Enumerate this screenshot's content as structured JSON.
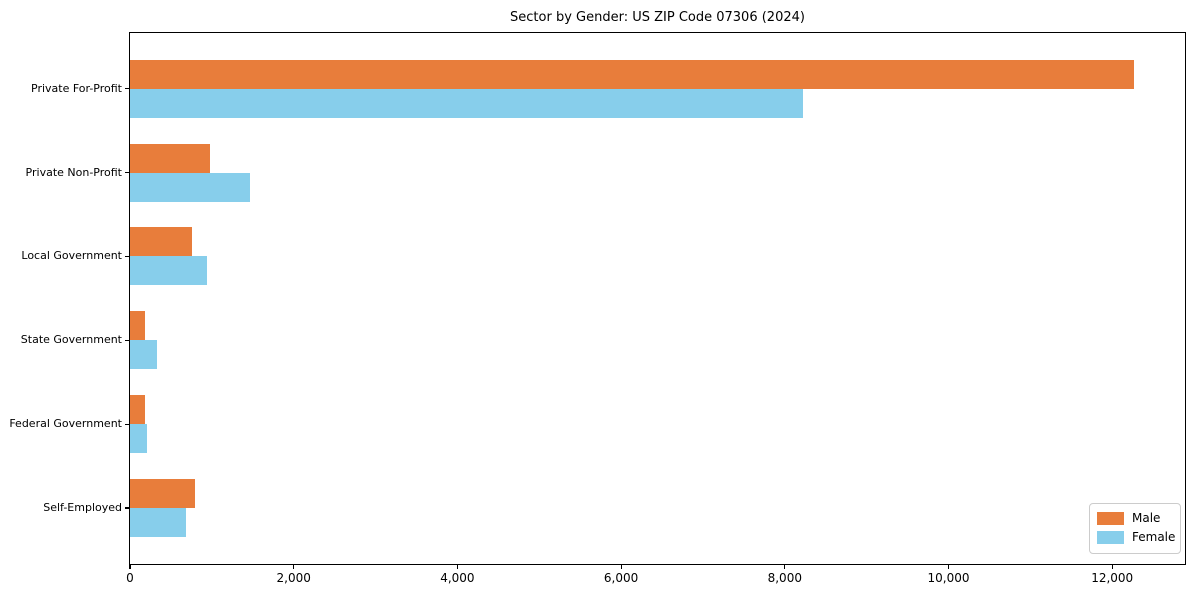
{
  "chart_data": {
    "type": "bar",
    "orientation": "horizontal",
    "title": "Sector by Gender: US ZIP Code 07306 (2024)",
    "categories": [
      "Private For-Profit",
      "Private Non-Profit",
      "Local Government",
      "State Government",
      "Federal Government",
      "Self-Employed"
    ],
    "series": [
      {
        "name": "Male",
        "color": "#e87d3b",
        "values": [
          12270,
          980,
          760,
          185,
          185,
          795
        ]
      },
      {
        "name": "Female",
        "color": "#87ceeb",
        "values": [
          8220,
          1465,
          940,
          330,
          210,
          685
        ]
      }
    ],
    "xlabel": "",
    "ylabel": "",
    "xlim": [
      0,
      12890
    ],
    "xticks": [
      0,
      2000,
      4000,
      6000,
      8000,
      10000,
      12000
    ],
    "xtick_labels": [
      "0",
      "2,000",
      "4,000",
      "6,000",
      "8,000",
      "10,000",
      "12,000"
    ],
    "legend": {
      "position": "lower right",
      "labels": [
        "Male",
        "Female"
      ]
    },
    "grid": false,
    "background_color": "#ffffff",
    "spine_color": "#000000"
  }
}
